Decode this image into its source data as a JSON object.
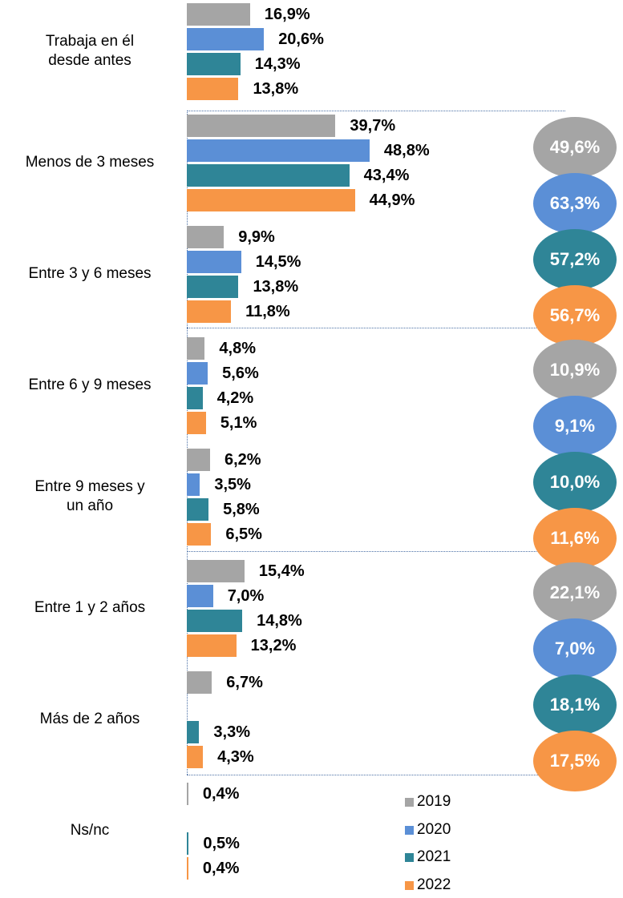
{
  "chart_data": {
    "type": "bar",
    "categories": [
      "Trabaja en él\ndesde antes",
      "Menos de 3 meses",
      "Entre 3 y 6 meses",
      "Entre 6 y 9 meses",
      "Entre 9 meses y\nun año",
      "Entre 1 y 2 años",
      "Más de 2 años",
      "Ns/nc"
    ],
    "series": [
      {
        "name": "2019",
        "color": "#a5a5a5",
        "values": [
          16.9,
          39.7,
          9.9,
          4.8,
          6.2,
          15.4,
          6.7,
          0.4
        ],
        "value_labels": [
          "16,9%",
          "39,7%",
          "9,9%",
          "4,8%",
          "6,2%",
          "15,4%",
          "6,7%",
          "0,4%"
        ]
      },
      {
        "name": "2020",
        "color": "#5b8fd6",
        "values": [
          20.6,
          48.8,
          14.5,
          5.6,
          3.5,
          7.0,
          null,
          null
        ],
        "value_labels": [
          "20,6%",
          "48,8%",
          "14,5%",
          "5,6%",
          "3,5%",
          "7,0%",
          null,
          null
        ]
      },
      {
        "name": "2021",
        "color": "#2f8597",
        "values": [
          14.3,
          43.4,
          13.8,
          4.2,
          5.8,
          14.8,
          3.3,
          0.5
        ],
        "value_labels": [
          "14,3%",
          "43,4%",
          "13,8%",
          "4,2%",
          "5,8%",
          "14,8%",
          "3,3%",
          "0,5%"
        ]
      },
      {
        "name": "2022",
        "color": "#f79646",
        "values": [
          13.8,
          44.9,
          11.8,
          5.1,
          6.5,
          13.2,
          4.3,
          0.4
        ],
        "value_labels": [
          "13,8%",
          "44,9%",
          "11,8%",
          "5,1%",
          "6,5%",
          "13,2%",
          "4,3%",
          "0,4%"
        ]
      }
    ],
    "totals": [
      {
        "values": [
          49.6,
          63.3,
          57.2,
          56.7
        ],
        "value_labels": [
          "49,6%",
          "63,3%",
          "57,2%",
          "56,7%"
        ]
      },
      {
        "values": [
          10.9,
          9.1,
          10.0,
          11.6
        ],
        "value_labels": [
          "10,9%",
          "9,1%",
          "10,0%",
          "11,6%"
        ]
      },
      {
        "values": [
          22.1,
          7.0,
          18.1,
          17.5
        ],
        "value_labels": [
          "22,1%",
          "7,0%",
          "18,1%",
          "17,5%"
        ]
      }
    ]
  }
}
